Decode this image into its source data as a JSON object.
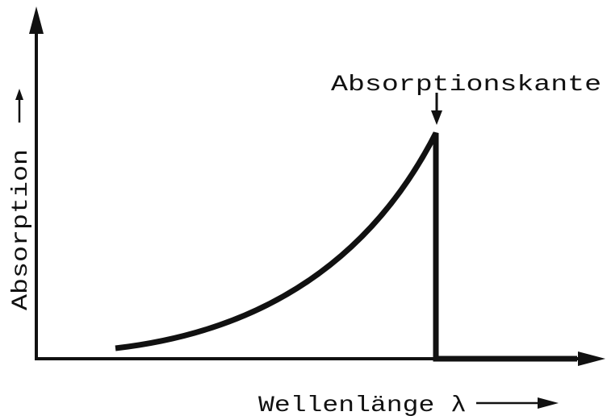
{
  "labels": {
    "annotation": "Absorptionskante",
    "y_axis": "Absorption",
    "x_axis": "Wellenlänge λ"
  }
}
